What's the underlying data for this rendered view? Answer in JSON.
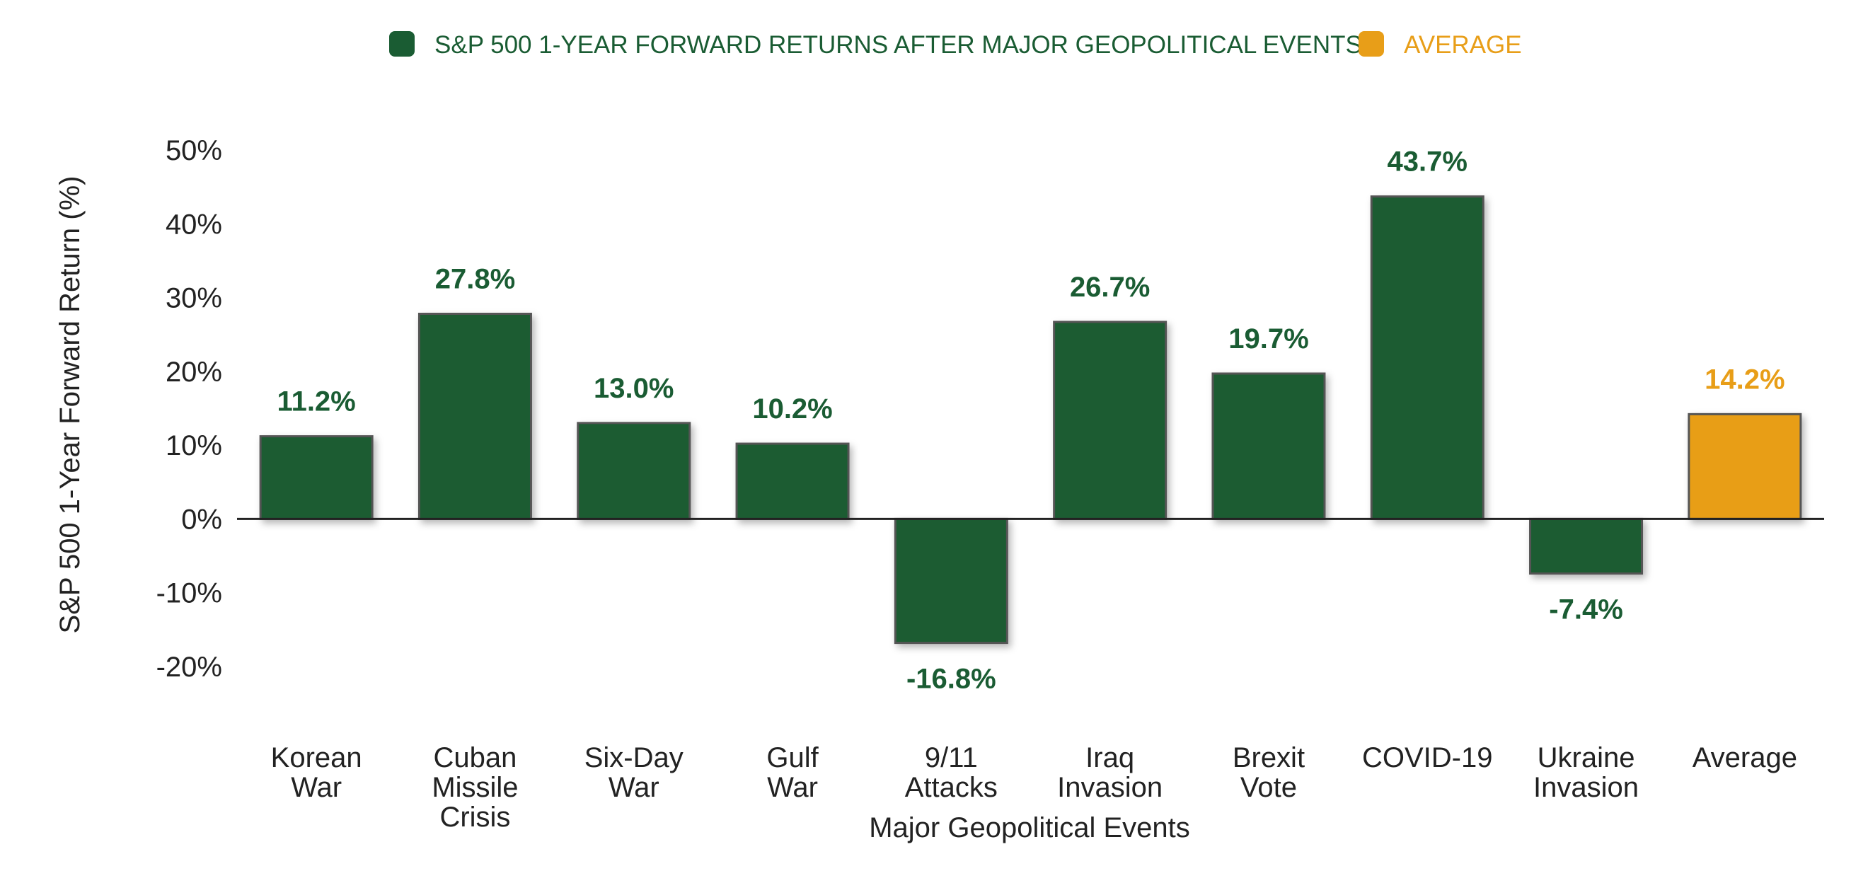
{
  "colors": {
    "series": "#1a5c33",
    "average": "#e89e18",
    "bar_stroke": "#555555",
    "axis": "#222222",
    "text": "#222222"
  },
  "legend": [
    {
      "label": "S&P 500 1-YEAR FORWARD RETURNS AFTER MAJOR GEOPOLITICAL EVENTS",
      "color": "#1a5c33"
    },
    {
      "label": "AVERAGE",
      "color": "#e89e18"
    }
  ],
  "chart_data": {
    "type": "bar",
    "title": "",
    "xlabel": "Major Geopolitical Events",
    "ylabel": "S&P 500 1-Year Forward Return (%)",
    "ylim": [
      -20,
      50
    ],
    "yticks": [
      50,
      40,
      30,
      20,
      10,
      0,
      -10,
      -20
    ],
    "ytick_labels": [
      "50%",
      "40%",
      "30%",
      "20%",
      "10%",
      "0%",
      "-10%",
      "-20%"
    ],
    "grid": false,
    "legend_position": "top-center",
    "categories": [
      [
        "Korean",
        "War"
      ],
      [
        "Cuban",
        "Missile",
        "Crisis"
      ],
      [
        "Six-Day",
        "War"
      ],
      [
        "Gulf",
        "War"
      ],
      [
        "9/11",
        "Attacks"
      ],
      [
        "Iraq",
        "Invasion"
      ],
      [
        "Brexit",
        "Vote"
      ],
      [
        "COVID-19"
      ],
      [
        "Ukraine",
        "Invasion"
      ],
      [
        "Average"
      ]
    ],
    "series": [
      {
        "name": "S&P 500 1-YEAR FORWARD RETURNS AFTER MAJOR GEOPOLITICAL EVENTS",
        "values": [
          11.2,
          27.8,
          13.0,
          10.2,
          -16.8,
          26.7,
          19.7,
          43.7,
          -7.4,
          null
        ],
        "labels": [
          "11.2%",
          "27.8%",
          "13.0%",
          "10.2%",
          "-16.8%",
          "26.7%",
          "19.7%",
          "43.7%",
          "-7.4%",
          null
        ]
      },
      {
        "name": "AVERAGE",
        "values": [
          null,
          null,
          null,
          null,
          null,
          null,
          null,
          null,
          null,
          14.2
        ],
        "labels": [
          null,
          null,
          null,
          null,
          null,
          null,
          null,
          null,
          null,
          "14.2%"
        ]
      }
    ]
  }
}
